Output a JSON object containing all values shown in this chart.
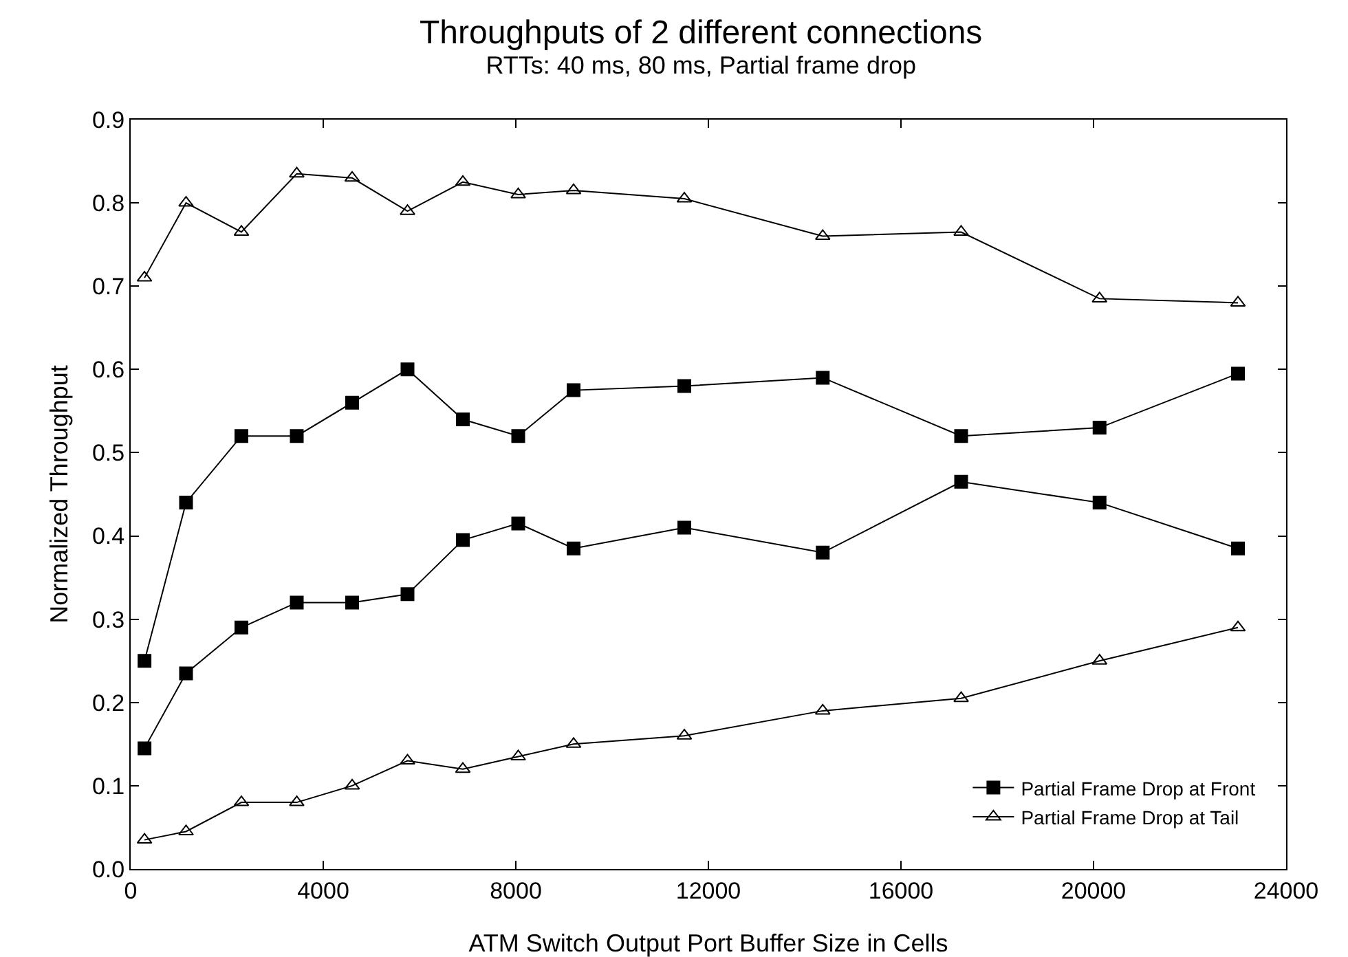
{
  "chart_data": {
    "type": "line",
    "title": "Throughputs of 2 different connections",
    "subtitle": "RTTs: 40 ms, 80 ms, Partial frame drop",
    "xlabel": "ATM Switch Output Port Buffer Size in Cells",
    "ylabel": "Normalized Throughput",
    "x": [
      287,
      1150,
      2300,
      3450,
      4600,
      5750,
      6900,
      8050,
      9200,
      11500,
      14375,
      17250,
      20125,
      23000
    ],
    "xlim": [
      0,
      24000
    ],
    "xticks": [
      0,
      4000,
      8000,
      12000,
      16000,
      20000,
      24000
    ],
    "ylim": [
      0,
      0.9
    ],
    "yticks": [
      {
        "value": 0,
        "label": "0.0"
      },
      0.1,
      0.2,
      0.3,
      0.4,
      0.5,
      0.6,
      0.7,
      0.8,
      0.9
    ],
    "grid": false,
    "legend": "bottom right",
    "line_style": "solid",
    "series": [
      {
        "name": "Partial Frame Drop at Front",
        "color": "#000000",
        "marker": "square",
        "values": [
          0.25,
          0.44,
          0.52,
          0.52,
          0.56,
          0.6,
          0.54,
          0.52,
          0.575,
          0.58,
          0.59,
          0.52,
          0.53,
          0.595
        ]
      },
      {
        "name": "Partial Frame Drop at Tail",
        "color": "#000000",
        "marker": "triangle",
        "values": [
          0.71,
          0.8,
          0.765,
          0.835,
          0.83,
          0.79,
          0.825,
          0.81,
          0.815,
          0.805,
          0.76,
          0.765,
          0.685,
          0.68
        ]
      },
      {
        "color": "#000000",
        "marker": "square",
        "values": [
          0.145,
          0.235,
          0.29,
          0.32,
          0.32,
          0.33,
          0.395,
          0.415,
          0.385,
          0.41,
          0.38,
          0.465,
          0.44,
          0.385
        ]
      },
      {
        "color": "#000000",
        "marker": "triangle",
        "values": [
          0.035,
          0.045,
          0.08,
          0.08,
          0.1,
          0.13,
          0.12,
          0.135,
          0.15,
          0.16,
          0.19,
          0.205,
          0.25,
          0.29
        ]
      }
    ]
  }
}
